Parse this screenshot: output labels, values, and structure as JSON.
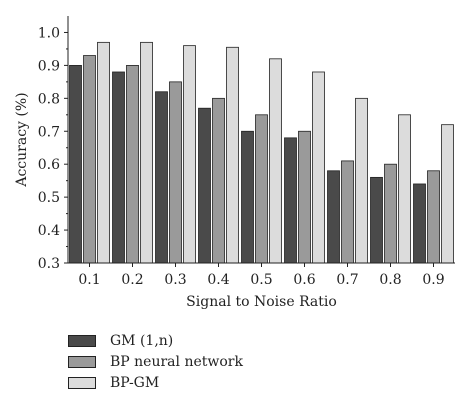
{
  "chart_data": {
    "type": "bar",
    "categories": [
      "0.1",
      "0.2",
      "0.3",
      "0.4",
      "0.5",
      "0.6",
      "0.7",
      "0.8",
      "0.9"
    ],
    "series": [
      {
        "name": "GM (1,n)",
        "values": [
          0.9,
          0.88,
          0.82,
          0.77,
          0.7,
          0.68,
          0.58,
          0.56,
          0.54
        ],
        "color": "#4a4a4a"
      },
      {
        "name": "BP neural network",
        "values": [
          0.93,
          0.9,
          0.85,
          0.8,
          0.75,
          0.7,
          0.61,
          0.6,
          0.58
        ],
        "color": "#9a9a9a"
      },
      {
        "name": "BP-GM",
        "values": [
          0.97,
          0.97,
          0.96,
          0.955,
          0.92,
          0.88,
          0.8,
          0.75,
          0.72
        ],
        "color": "#dcdcdc"
      }
    ],
    "title": "",
    "xlabel": "Signal to Noise Ratio",
    "ylabel": "Accuracy (%)",
    "ylim": [
      0.3,
      1.05
    ],
    "yticks": [
      "0.3",
      "0.4",
      "0.5",
      "0.6",
      "0.7",
      "0.8",
      "0.9",
      "1.0"
    ],
    "grid": false,
    "legend_position": "bottom-left, below plot"
  }
}
